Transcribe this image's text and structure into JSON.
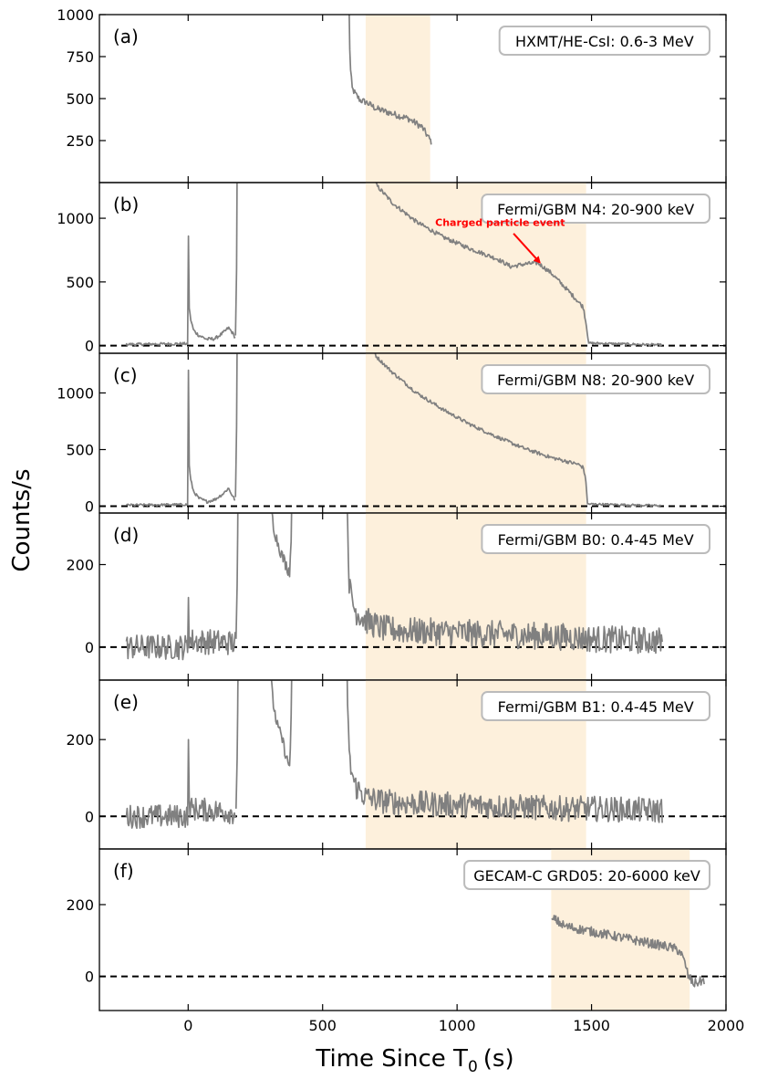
{
  "chart_data": {
    "type": "line",
    "xlabel": "Time Since T",
    "xlabel_sub": "0",
    "xlabel_unit": "(s)",
    "ylabel": "Counts/s",
    "xlim": [
      -330,
      2000
    ],
    "xticks": [
      0,
      500,
      1000,
      1500,
      2000
    ],
    "xtick_labels": [
      "0",
      "500",
      "1000",
      "1500",
      "2000"
    ],
    "line_color": "#808080",
    "shade_color": "#fdf0dc",
    "panels": [
      {
        "id": "(a)",
        "instrument": "HXMT/HE-CsI: 0.6-3 MeV",
        "ylim": [
          0,
          1000
        ],
        "yticks": [
          250,
          500,
          750,
          1000
        ],
        "ytick_labels": [
          "250",
          "500",
          "750",
          "1000"
        ],
        "zero_line": false,
        "shade": [
          660,
          900
        ],
        "segments": [
          {
            "x0": 598,
            "x1": 905,
            "key": [
              [
                598,
                1100
              ],
              [
                602,
                700
              ],
              [
                610,
                560
              ],
              [
                625,
                520
              ],
              [
                640,
                490
              ],
              [
                660,
                480
              ],
              [
                700,
                440
              ],
              [
                760,
                410
              ],
              [
                820,
                380
              ],
              [
                870,
                330
              ],
              [
                905,
                240
              ]
            ],
            "noise": 18,
            "spikes": []
          }
        ]
      },
      {
        "id": "(b)",
        "instrument": "Fermi/GBM N4: 20-900 keV",
        "ylim": [
          -60,
          1280
        ],
        "yticks": [
          0,
          500,
          1000
        ],
        "ytick_labels": [
          "0",
          "500",
          "1000"
        ],
        "zero_line": true,
        "shade": [
          660,
          1480
        ],
        "annotation": {
          "text": "Charged particle event",
          "color": "#ff0000",
          "x": 1300,
          "y": 640,
          "text_x": 1160,
          "text_y": 940
        },
        "segments": [
          {
            "x0": -230,
            "x1": -2,
            "key": [
              [
                -230,
                10
              ],
              [
                -2,
                15
              ]
            ],
            "noise": 10,
            "spikes": []
          },
          {
            "x0": -2,
            "x1": 176,
            "key": [
              [
                -2,
                15
              ],
              [
                1,
                30
              ],
              [
                3,
                320
              ],
              [
                8,
                220
              ],
              [
                20,
                120
              ],
              [
                40,
                80
              ],
              [
                70,
                50
              ],
              [
                100,
                55
              ],
              [
                130,
                100
              ],
              [
                150,
                140
              ],
              [
                165,
                100
              ],
              [
                176,
                60
              ]
            ],
            "noise": 12,
            "spikes": [
              [
                0,
                860
              ]
            ]
          },
          {
            "x0": 176,
            "x1": 182,
            "key": [
              [
                176,
                80
              ],
              [
                180,
                600
              ],
              [
                182,
                1400
              ]
            ],
            "noise": 0,
            "spikes": []
          },
          {
            "x0": 692,
            "x1": 1490,
            "key": [
              [
                692,
                1320
              ],
              [
                700,
                1260
              ],
              [
                760,
                1120
              ],
              [
                850,
                970
              ],
              [
                950,
                850
              ],
              [
                1050,
                760
              ],
              [
                1150,
                680
              ],
              [
                1200,
                620
              ],
              [
                1250,
                640
              ],
              [
                1300,
                650
              ],
              [
                1350,
                570
              ],
              [
                1400,
                460
              ],
              [
                1440,
                370
              ],
              [
                1470,
                300
              ],
              [
                1480,
                170
              ],
              [
                1490,
                20
              ]
            ],
            "noise": 15,
            "spikes": []
          },
          {
            "x0": 1490,
            "x1": 1760,
            "key": [
              [
                1490,
                20
              ],
              [
                1760,
                5
              ]
            ],
            "noise": 8,
            "spikes": []
          }
        ]
      },
      {
        "id": "(c)",
        "instrument": "Fermi/GBM N8: 20-900 keV",
        "ylim": [
          -60,
          1350
        ],
        "yticks": [
          0,
          500,
          1000
        ],
        "ytick_labels": [
          "0",
          "500",
          "1000"
        ],
        "zero_line": true,
        "shade": [
          660,
          1480
        ],
        "segments": [
          {
            "x0": -230,
            "x1": -2,
            "key": [
              [
                -230,
                10
              ],
              [
                -2,
                15
              ]
            ],
            "noise": 9,
            "spikes": []
          },
          {
            "x0": -2,
            "x1": 176,
            "key": [
              [
                -2,
                15
              ],
              [
                1,
                30
              ],
              [
                3,
                400
              ],
              [
                8,
                250
              ],
              [
                20,
                130
              ],
              [
                40,
                70
              ],
              [
                70,
                40
              ],
              [
                100,
                60
              ],
              [
                130,
                110
              ],
              [
                150,
                160
              ],
              [
                165,
                90
              ],
              [
                176,
                50
              ]
            ],
            "noise": 12,
            "spikes": [
              [
                0,
                1200
              ]
            ]
          },
          {
            "x0": 176,
            "x1": 182,
            "key": [
              [
                176,
                80
              ],
              [
                180,
                700
              ],
              [
                182,
                1450
              ]
            ],
            "noise": 0,
            "spikes": []
          },
          {
            "x0": 690,
            "x1": 1485,
            "key": [
              [
                690,
                1380
              ],
              [
                700,
                1320
              ],
              [
                760,
                1180
              ],
              [
                850,
                1000
              ],
              [
                950,
                850
              ],
              [
                1050,
                720
              ],
              [
                1150,
                610
              ],
              [
                1250,
                510
              ],
              [
                1350,
                430
              ],
              [
                1450,
                370
              ],
              [
                1470,
                340
              ],
              [
                1480,
                200
              ],
              [
                1485,
                20
              ]
            ],
            "noise": 14,
            "spikes": []
          },
          {
            "x0": 1485,
            "x1": 1760,
            "key": [
              [
                1485,
                20
              ],
              [
                1760,
                5
              ]
            ],
            "noise": 8,
            "spikes": []
          }
        ]
      },
      {
        "id": "(d)",
        "instrument": "Fermi/GBM B0: 0.4-45 MeV",
        "ylim": [
          -80,
          325
        ],
        "yticks": [
          0,
          200
        ],
        "ytick_labels": [
          "0",
          "200"
        ],
        "zero_line": true,
        "shade": [
          660,
          1480
        ],
        "segments": [
          {
            "x0": -230,
            "x1": 178,
            "key": [
              [
                -230,
                0
              ],
              [
                -2,
                0
              ],
              [
                2,
                30
              ],
              [
                10,
                15
              ],
              [
                178,
                10
              ]
            ],
            "noise": 28,
            "spikes": [
              [
                0,
                120
              ]
            ]
          },
          {
            "x0": 178,
            "x1": 188,
            "key": [
              [
                178,
                20
              ],
              [
                182,
                150
              ],
              [
                186,
                400
              ]
            ],
            "noise": 0,
            "spikes": []
          },
          {
            "x0": 308,
            "x1": 390,
            "key": [
              [
                308,
                360
              ],
              [
                315,
                300
              ],
              [
                330,
                260
              ],
              [
                350,
                220
              ],
              [
                370,
                190
              ],
              [
                378,
                185
              ],
              [
                383,
                260
              ],
              [
                386,
                400
              ]
            ],
            "noise": 14,
            "spikes": []
          },
          {
            "x0": 590,
            "x1": 1765,
            "key": [
              [
                590,
                400
              ],
              [
                595,
                250
              ],
              [
                600,
                140
              ],
              [
                620,
                90
              ],
              [
                660,
                65
              ],
              [
                720,
                45
              ],
              [
                800,
                40
              ],
              [
                1000,
                35
              ],
              [
                1200,
                30
              ],
              [
                1400,
                25
              ],
              [
                1500,
                20
              ],
              [
                1765,
                15
              ]
            ],
            "noise": 30,
            "spikes": []
          }
        ]
      },
      {
        "id": "(e)",
        "instrument": "Fermi/GBM B1: 0.4-45 MeV",
        "ylim": [
          -85,
          355
        ],
        "yticks": [
          0,
          200
        ],
        "ytick_labels": [
          "0",
          "200"
        ],
        "zero_line": true,
        "shade": [
          660,
          1480
        ],
        "segments": [
          {
            "x0": -230,
            "x1": 178,
            "key": [
              [
                -230,
                0
              ],
              [
                -2,
                0
              ],
              [
                2,
                40
              ],
              [
                10,
                20
              ],
              [
                178,
                10
              ]
            ],
            "noise": 28,
            "spikes": [
              [
                0,
                200
              ]
            ]
          },
          {
            "x0": 178,
            "x1": 188,
            "key": [
              [
                178,
                20
              ],
              [
                182,
                150
              ],
              [
                186,
                400
              ]
            ],
            "noise": 0,
            "spikes": []
          },
          {
            "x0": 308,
            "x1": 390,
            "key": [
              [
                308,
                360
              ],
              [
                315,
                300
              ],
              [
                330,
                240
              ],
              [
                350,
                200
              ],
              [
                370,
                140
              ],
              [
                378,
                130
              ],
              [
                383,
                260
              ],
              [
                386,
                400
              ]
            ],
            "noise": 14,
            "spikes": []
          },
          {
            "x0": 590,
            "x1": 1765,
            "key": [
              [
                590,
                400
              ],
              [
                595,
                250
              ],
              [
                600,
                140
              ],
              [
                620,
                80
              ],
              [
                660,
                50
              ],
              [
                720,
                40
              ],
              [
                800,
                35
              ],
              [
                1000,
                30
              ],
              [
                1200,
                25
              ],
              [
                1400,
                20
              ],
              [
                1500,
                20
              ],
              [
                1765,
                15
              ]
            ],
            "noise": 30,
            "spikes": []
          }
        ]
      },
      {
        "id": "(f)",
        "instrument": "GECAM-C GRD05: 20-6000 keV",
        "ylim": [
          -95,
          355
        ],
        "yticks": [
          0,
          200
        ],
        "ytick_labels": [
          "0",
          "200"
        ],
        "zero_line": true,
        "shade": [
          1350,
          1865
        ],
        "segments": [
          {
            "x0": 1352,
            "x1": 1920,
            "key": [
              [
                1352,
                150
              ],
              [
                1360,
                160
              ],
              [
                1400,
                140
              ],
              [
                1500,
                125
              ],
              [
                1600,
                110
              ],
              [
                1700,
                95
              ],
              [
                1800,
                80
              ],
              [
                1830,
                70
              ],
              [
                1850,
                30
              ],
              [
                1860,
                0
              ],
              [
                1880,
                -20
              ],
              [
                1920,
                -10
              ]
            ],
            "noise": 12,
            "spikes": []
          }
        ]
      }
    ]
  }
}
